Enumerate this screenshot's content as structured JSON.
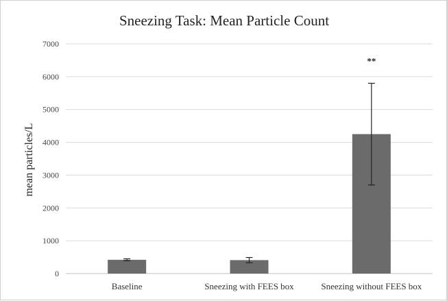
{
  "chart_data": {
    "type": "bar",
    "title": "Sneezing Task: Mean Particle Count",
    "xlabel": "",
    "ylabel": "mean particles/L",
    "ylim": [
      0,
      7000
    ],
    "yticks": [
      "0",
      "1000",
      "2000",
      "3000",
      "4000",
      "5000",
      "6000",
      "7000"
    ],
    "grid": true,
    "legend": "none",
    "categories": [
      "Baseline",
      "Sneezing with FEES box",
      "Sneezing without FEES box"
    ],
    "values": [
      420,
      410,
      4250
    ],
    "error_low": [
      390,
      330,
      2700
    ],
    "error_high": [
      450,
      490,
      5800
    ],
    "annotations": [
      "",
      "",
      "**"
    ],
    "colors": {
      "bar": "#6b6b6b",
      "grid": "#d9d9d9",
      "axis": "#bfbfbf",
      "error": "#222222"
    }
  }
}
